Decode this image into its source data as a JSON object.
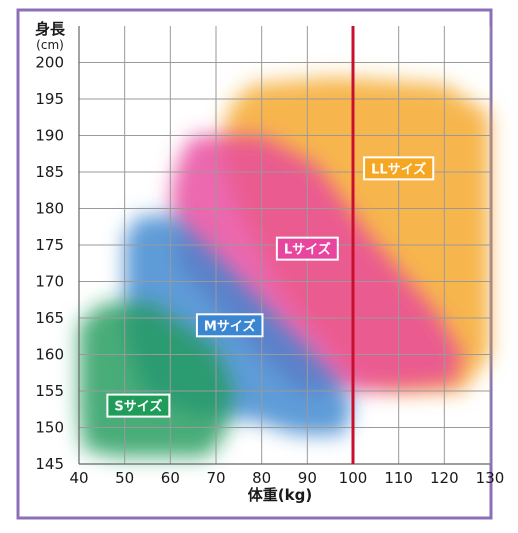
{
  "chart_data": {
    "type": "area",
    "xlabel": "体重(kg)",
    "ylabel": "身長",
    "ylabel_unit": "(cm)",
    "xlim": [
      40,
      130
    ],
    "ylim": [
      145,
      205
    ],
    "x_ticks": [
      "40",
      "50",
      "60",
      "70",
      "80",
      "90",
      "100",
      "110",
      "120",
      "130"
    ],
    "y_ticks": [
      "145",
      "150",
      "155",
      "160",
      "165",
      "170",
      "175",
      "180",
      "185",
      "190",
      "195",
      "200"
    ],
    "grid": true,
    "reference_line": {
      "axis": "x",
      "value": 100,
      "color": "#c8102e"
    },
    "regions": [
      {
        "name": "LLサイズ",
        "color": "#f5a623",
        "polygon": [
          [
            73,
            194
          ],
          [
            78,
            197
          ],
          [
            96,
            198
          ],
          [
            120,
            197
          ],
          [
            130,
            193
          ],
          [
            130,
            160
          ],
          [
            124,
            155
          ],
          [
            110,
            155
          ],
          [
            100,
            157
          ],
          [
            85,
            168
          ],
          [
            75,
            180
          ],
          [
            71,
            188
          ]
        ],
        "label_at": [
          110,
          185.5
        ]
      },
      {
        "name": "Lサイズ",
        "color": "#e8469e",
        "polygon": [
          [
            62,
            187
          ],
          [
            65,
            190
          ],
          [
            80,
            190
          ],
          [
            92,
            186
          ],
          [
            104,
            176
          ],
          [
            118,
            166
          ],
          [
            124,
            160
          ],
          [
            122,
            156
          ],
          [
            104,
            155
          ],
          [
            88,
            155
          ],
          [
            78,
            161
          ],
          [
            62,
            172
          ],
          [
            60,
            182
          ]
        ],
        "label_at": [
          90,
          174.5
        ]
      },
      {
        "name": "Mサイズ",
        "color": "#3a86d0",
        "polygon": [
          [
            50,
            176
          ],
          [
            53,
            179
          ],
          [
            61,
            179
          ],
          [
            71,
            173
          ],
          [
            85,
            164
          ],
          [
            96,
            157
          ],
          [
            100,
            153
          ],
          [
            98,
            149
          ],
          [
            88,
            149
          ],
          [
            78,
            151
          ],
          [
            64,
            152
          ],
          [
            54,
            155
          ],
          [
            50,
            163
          ],
          [
            50,
            170
          ]
        ],
        "label_at": [
          73,
          164
        ]
      },
      {
        "name": "Sサイズ",
        "color": "#1f9b5a",
        "polygon": [
          [
            40,
            164
          ],
          [
            45,
            167
          ],
          [
            56,
            167
          ],
          [
            70,
            161
          ],
          [
            74,
            155
          ],
          [
            72,
            149
          ],
          [
            68,
            146
          ],
          [
            58,
            146
          ],
          [
            48,
            146
          ],
          [
            41,
            147
          ],
          [
            40,
            152
          ]
        ],
        "label_at": [
          53,
          153
        ]
      }
    ]
  },
  "colors": {
    "frame": "#8d6fb8",
    "grid": "#9a9a9a",
    "label_border": "#ffffff"
  }
}
